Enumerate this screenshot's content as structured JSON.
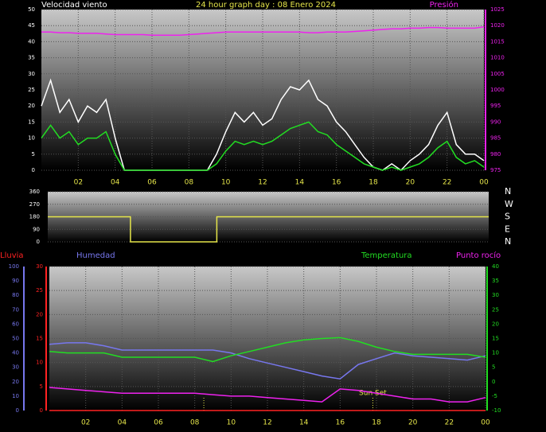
{
  "chart_data": [
    {
      "type": "line",
      "title": "24 hour graph day : 08 Enero 2024",
      "y_label": "Velocidad viento",
      "y2_label": "Presión",
      "x": [
        0,
        0.5,
        1,
        1.5,
        2,
        2.5,
        3,
        3.5,
        4,
        4.5,
        5,
        5.5,
        6,
        6.5,
        7,
        7.5,
        8,
        8.5,
        9,
        9.5,
        10,
        10.5,
        11,
        11.5,
        12,
        12.5,
        13,
        13.5,
        14,
        14.5,
        15,
        15.5,
        16,
        16.5,
        17,
        17.5,
        18,
        18.5,
        19,
        19.5,
        20,
        20.5,
        21,
        21.5,
        22,
        22.5,
        23,
        23.5,
        24
      ],
      "series": [
        {
          "color": "#ffffff",
          "values": [
            20,
            28,
            18,
            22,
            15,
            20,
            18,
            22,
            10,
            0,
            0,
            0,
            0,
            0,
            0,
            0,
            0,
            0,
            0,
            5,
            12,
            18,
            15,
            18,
            14,
            16,
            22,
            26,
            25,
            28,
            22,
            20,
            15,
            12,
            8,
            4,
            1,
            0,
            2,
            0,
            3,
            5,
            8,
            14,
            18,
            8,
            5,
            5,
            3
          ]
        },
        {
          "color": "#22dd22",
          "values": [
            10,
            14,
            10,
            12,
            8,
            10,
            10,
            12,
            5,
            0,
            0,
            0,
            0,
            0,
            0,
            0,
            0,
            0,
            0,
            2,
            6,
            9,
            8,
            9,
            8,
            9,
            11,
            13,
            14,
            15,
            12,
            11,
            8,
            6,
            4,
            2,
            1,
            0,
            1,
            0,
            1,
            2,
            4,
            7,
            9,
            4,
            2,
            3,
            1
          ]
        },
        {
          "color": "#ee22ee",
          "axis": "y2",
          "values": [
            1018,
            1018,
            1017.8,
            1017.8,
            1017.6,
            1017.6,
            1017.6,
            1017.4,
            1017.2,
            1017.2,
            1017.2,
            1017.2,
            1017,
            1017,
            1017,
            1017,
            1017.2,
            1017.4,
            1017.6,
            1017.8,
            1018,
            1018,
            1018,
            1018,
            1018,
            1018,
            1018,
            1018,
            1018,
            1017.8,
            1017.8,
            1018,
            1018,
            1018,
            1018.2,
            1018.4,
            1018.6,
            1018.8,
            1019,
            1019,
            1019.2,
            1019.2,
            1019.4,
            1019.4,
            1019.2,
            1019.2,
            1019.2,
            1019.2,
            1019.6
          ]
        }
      ],
      "xlim": [
        0,
        24
      ],
      "xticks": [
        {
          "value": 2,
          "label": "02"
        },
        {
          "value": 4,
          "label": "04"
        },
        {
          "value": 6,
          "label": "06"
        },
        {
          "value": 8,
          "label": "08"
        },
        10,
        12,
        14,
        16,
        18,
        20,
        22,
        {
          "value": 24,
          "label": "00"
        }
      ],
      "ylim": [
        0,
        50
      ],
      "yticks": [
        0,
        5,
        10,
        15,
        20,
        25,
        30,
        35,
        40,
        45,
        50
      ],
      "y_color": "#ffffff",
      "y2lim": [
        975,
        1025
      ],
      "y2ticks": [
        975,
        980,
        985,
        990,
        995,
        1000,
        1005,
        1010,
        1015,
        1020,
        1025
      ],
      "y2_color": "#ee22ee",
      "grid": true
    },
    {
      "type": "line",
      "x": [
        0,
        4.5,
        4.5,
        9.2,
        9.2,
        24
      ],
      "series": [
        {
          "color": "#e6e64a",
          "values": [
            180,
            180,
            0,
            0,
            180,
            180
          ]
        }
      ],
      "xlim": [
        0,
        24
      ],
      "ylim": [
        0,
        360
      ],
      "yticks": [
        0,
        90,
        180,
        270,
        360
      ],
      "y_color": "#ffffff",
      "y2lim": [
        0,
        360
      ],
      "y2ticks": [
        {
          "value": 360,
          "label": "N"
        },
        {
          "value": 270,
          "label": "W"
        },
        {
          "value": 180,
          "label": "S"
        },
        {
          "value": 90,
          "label": "E"
        },
        {
          "value": 0,
          "label": "N"
        }
      ],
      "y2_color": "#ffffff",
      "grid": true
    },
    {
      "type": "line",
      "x": [
        0,
        1,
        2,
        3,
        4,
        5,
        6,
        7,
        8,
        9,
        10,
        11,
        12,
        13,
        14,
        15,
        16,
        17,
        18,
        19,
        20,
        21,
        22,
        23,
        24
      ],
      "series": [
        {
          "name": "Lluvia",
          "color": "#ff2222",
          "values": [
            0,
            0,
            0,
            0,
            0,
            0,
            0,
            0,
            0,
            0,
            0,
            0,
            0,
            0,
            0,
            0,
            0,
            0,
            0,
            0,
            0,
            0,
            0,
            0,
            0
          ]
        },
        {
          "name": "Humedad",
          "color": "#7777ee",
          "axis": "y3",
          "values": [
            46,
            47,
            47,
            45,
            42,
            42,
            42,
            42,
            42,
            42,
            40,
            36,
            33,
            30,
            27,
            24,
            22,
            32,
            36,
            40,
            38,
            37,
            36,
            35,
            38
          ]
        },
        {
          "name": "Temperatura",
          "color": "#22dd22",
          "axis": "y2",
          "values": [
            10.5,
            10,
            10,
            10,
            8.5,
            8.5,
            8.5,
            8.5,
            8.5,
            7,
            9,
            10.5,
            12,
            13.5,
            14.5,
            15,
            15.3,
            14,
            12,
            10.5,
            9.5,
            9.5,
            9.5,
            9.5,
            8.5
          ]
        },
        {
          "name": "Punto rocío",
          "color": "#ee22ee",
          "axis": "y2",
          "values": [
            -2,
            -2.5,
            -3,
            -3.5,
            -4,
            -4,
            -4,
            -4,
            -4,
            -4.5,
            -5,
            -5,
            -5.5,
            -6,
            -6.5,
            -7,
            -2.5,
            -3,
            -4,
            -5,
            -6,
            -6,
            -7,
            -7,
            -5.5
          ]
        }
      ],
      "xlim": [
        0,
        24
      ],
      "xticks": [
        {
          "value": 2,
          "label": "02"
        },
        {
          "value": 4,
          "label": "04"
        },
        {
          "value": 6,
          "label": "06"
        },
        {
          "value": 8,
          "label": "08"
        },
        10,
        12,
        14,
        16,
        18,
        20,
        22,
        {
          "value": 24,
          "label": "00"
        }
      ],
      "ylim": [
        0,
        30
      ],
      "yticks": [
        0,
        5,
        10,
        15,
        20,
        25,
        30
      ],
      "y_color": "#ff2222",
      "y2lim": [
        -10,
        40
      ],
      "y2ticks": [
        -10,
        -5,
        0,
        5,
        10,
        15,
        20,
        25,
        30,
        35,
        40
      ],
      "y2_color": "#22dd22",
      "y3lim": [
        0,
        100
      ],
      "y3ticks": [
        0,
        10,
        20,
        30,
        40,
        50,
        60,
        70,
        80,
        90,
        100
      ],
      "y3_color": "#7777ee",
      "vlines": [
        8.5,
        17.8
      ],
      "annotations": [
        {
          "text": "Sun Set",
          "x": 17.8
        }
      ],
      "grid": true
    }
  ]
}
